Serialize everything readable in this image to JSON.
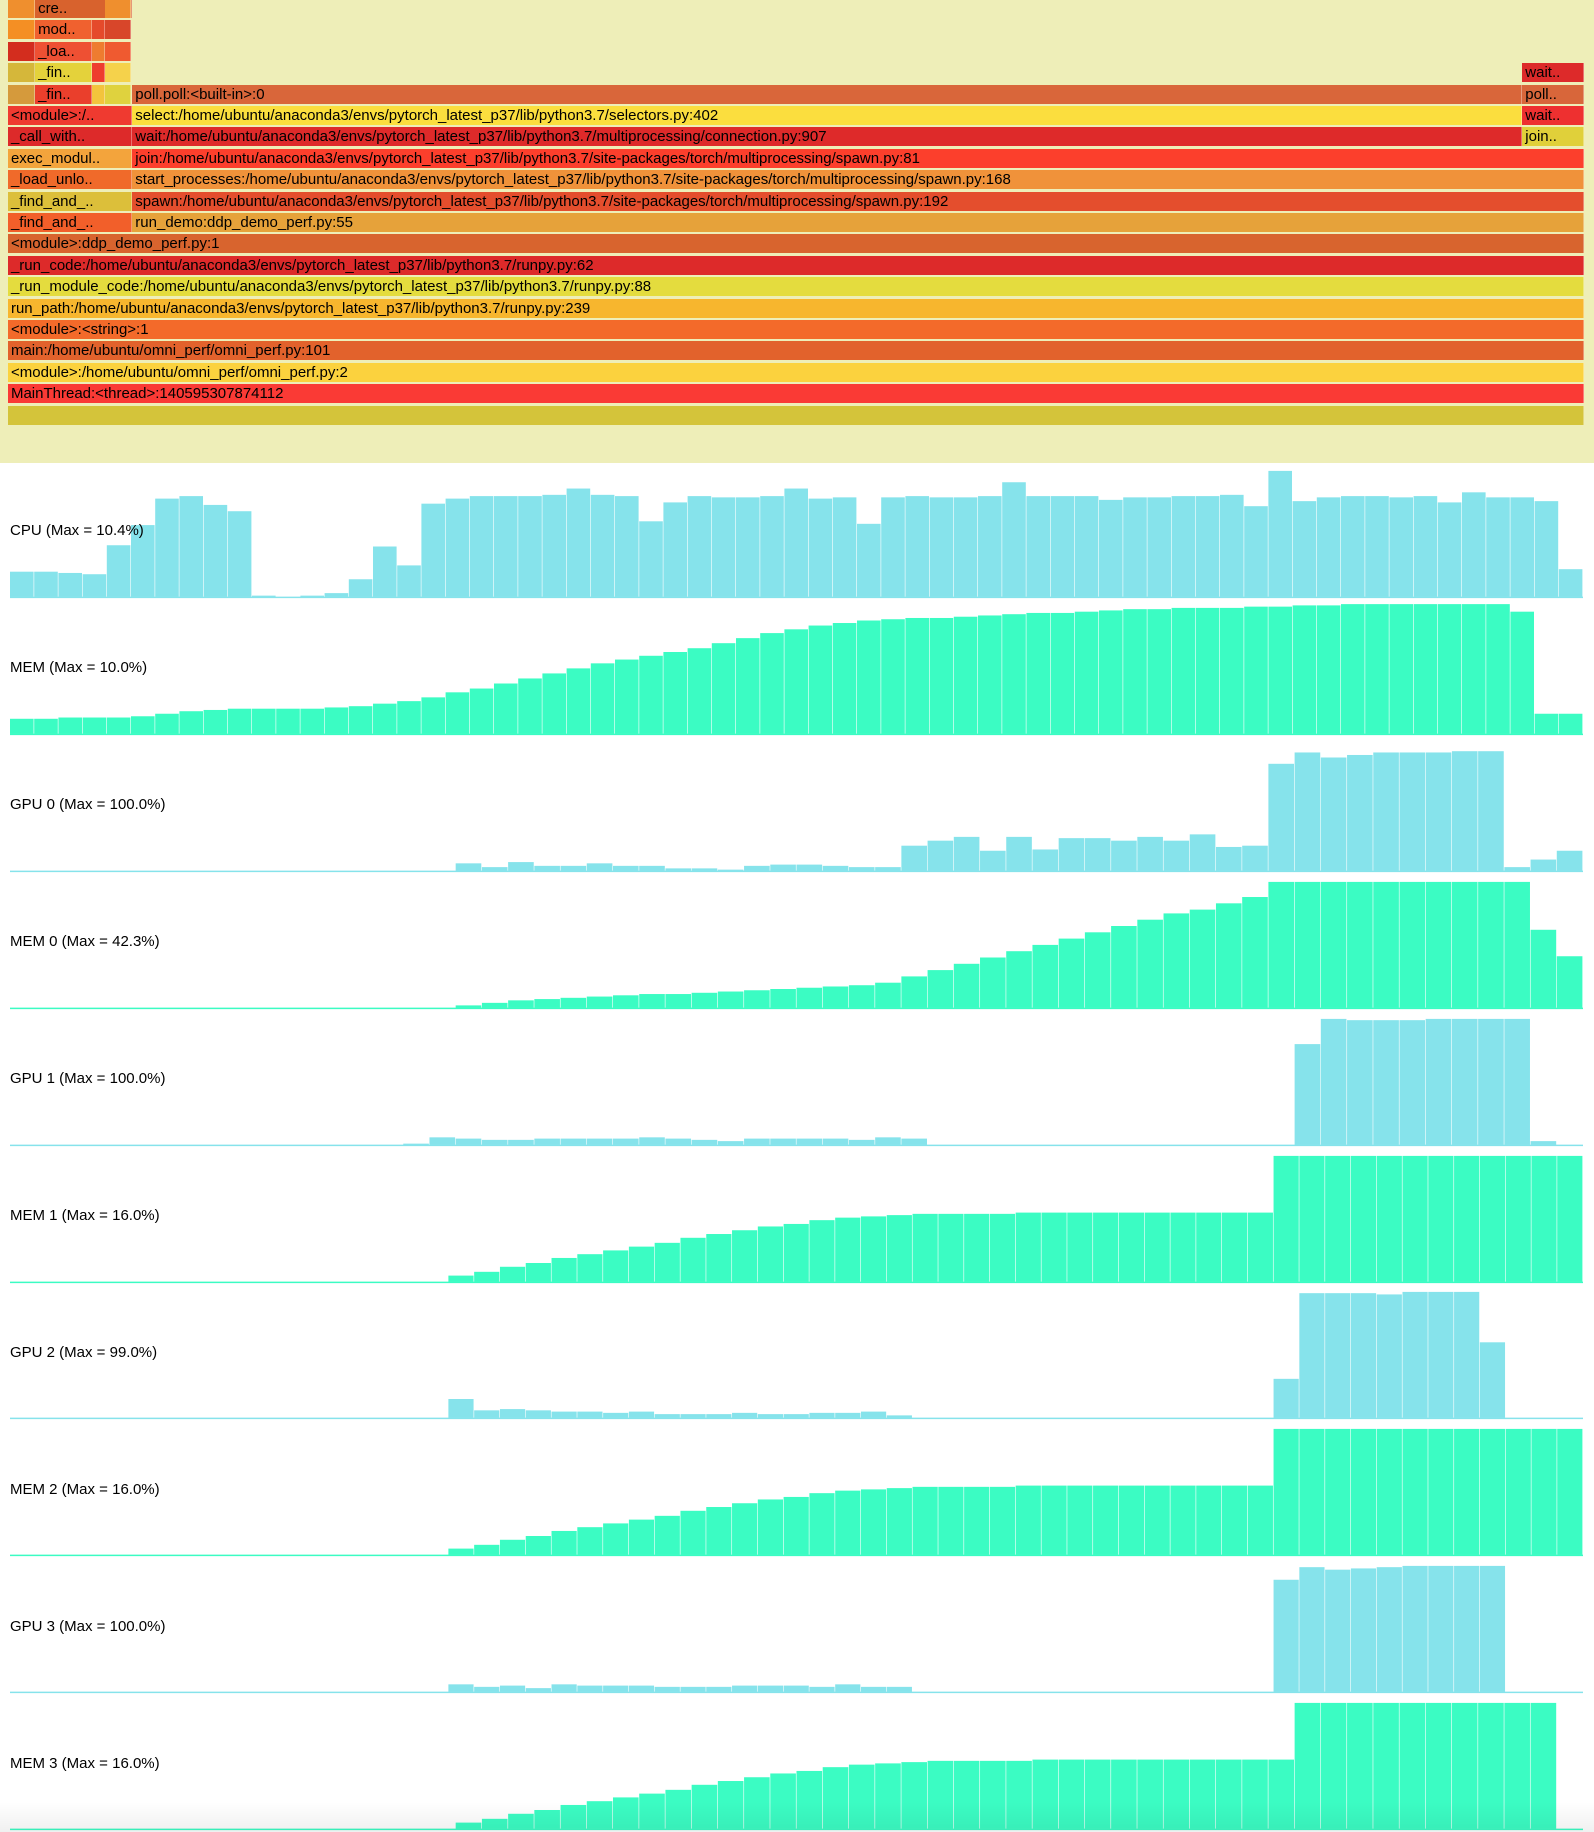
{
  "flamegraph": {
    "frames": [
      {
        "label": "cre..",
        "color": "#d8622d",
        "row": 0,
        "start": 0.022,
        "end": 0.083
      },
      {
        "label": "",
        "color": "#ef8f2e",
        "row": 0,
        "start": 0.005,
        "end": 0.022
      },
      {
        "label": "",
        "color": "#ef8f2e",
        "row": 0,
        "start": 0.066,
        "end": 0.082
      },
      {
        "label": "mod..",
        "color": "#f0612f",
        "row": 1,
        "start": 0.022,
        "end": 0.058
      },
      {
        "label": "",
        "color": "#f48f24",
        "row": 1,
        "start": 0.005,
        "end": 0.022
      },
      {
        "label": "",
        "color": "#e54a2b",
        "row": 1,
        "start": 0.058,
        "end": 0.066
      },
      {
        "label": "",
        "color": "#d8462a",
        "row": 1,
        "start": 0.066,
        "end": 0.082
      },
      {
        "label": "_loa..",
        "color": "#ee5033",
        "row": 2,
        "start": 0.022,
        "end": 0.058
      },
      {
        "label": "",
        "color": "#d32d1e",
        "row": 2,
        "start": 0.005,
        "end": 0.022
      },
      {
        "label": "",
        "color": "#ee7c30",
        "row": 2,
        "start": 0.058,
        "end": 0.066
      },
      {
        "label": "",
        "color": "#ef5a30",
        "row": 2,
        "start": 0.066,
        "end": 0.082
      },
      {
        "label": "_fin..",
        "color": "#e4d23b",
        "row": 3,
        "start": 0.022,
        "end": 0.058
      },
      {
        "label": "",
        "color": "#d5b73a",
        "row": 3,
        "start": 0.005,
        "end": 0.022
      },
      {
        "label": "",
        "color": "#ee3d2e",
        "row": 3,
        "start": 0.058,
        "end": 0.066
      },
      {
        "label": "",
        "color": "#f5d24b",
        "row": 3,
        "start": 0.066,
        "end": 0.082
      },
      {
        "label": "wait..",
        "color": "#dd2a2a",
        "row": 3,
        "start": 0.955,
        "end": 0.994
      },
      {
        "label": "_fin..",
        "color": "#ea3f2c",
        "row": 4,
        "start": 0.022,
        "end": 0.058
      },
      {
        "label": "",
        "color": "#d59a3c",
        "row": 4,
        "start": 0.005,
        "end": 0.022
      },
      {
        "label": "",
        "color": "#f3c43c",
        "row": 4,
        "start": 0.058,
        "end": 0.066
      },
      {
        "label": "",
        "color": "#dfd23e",
        "row": 4,
        "start": 0.066,
        "end": 0.082
      },
      {
        "label": "poll.poll:<built-in>:0",
        "color": "#d9663a",
        "row": 4,
        "start": 0.083,
        "end": 0.955
      },
      {
        "label": "poll..",
        "color": "#d8663a",
        "row": 4,
        "start": 0.955,
        "end": 0.994
      },
      {
        "label": "<module>:/..",
        "color": "#ef3a30",
        "row": 5,
        "start": 0.005,
        "end": 0.083
      },
      {
        "label": "select:/home/ubuntu/anaconda3/envs/pytorch_latest_p37/lib/python3.7/selectors.py:402",
        "color": "#fbde3e",
        "row": 5,
        "start": 0.083,
        "end": 0.955
      },
      {
        "label": "wait..",
        "color": "#ee3030",
        "row": 5,
        "start": 0.955,
        "end": 0.994
      },
      {
        "label": "_call_with..",
        "color": "#dd2a2a",
        "row": 6,
        "start": 0.005,
        "end": 0.083
      },
      {
        "label": "wait:/home/ubuntu/anaconda3/envs/pytorch_latest_p37/lib/python3.7/multiprocessing/connection.py:907",
        "color": "#de2a2a",
        "row": 6,
        "start": 0.083,
        "end": 0.955
      },
      {
        "label": "join..",
        "color": "#e0d03a",
        "row": 6,
        "start": 0.955,
        "end": 0.994
      },
      {
        "label": "exec_modul..",
        "color": "#f3a43c",
        "row": 7,
        "start": 0.005,
        "end": 0.083
      },
      {
        "label": "join:/home/ubuntu/anaconda3/envs/pytorch_latest_p37/lib/python3.7/site-packages/torch/multiprocessing/spawn.py:81",
        "color": "#fc3f2c",
        "row": 7,
        "start": 0.083,
        "end": 0.994
      },
      {
        "label": "_load_unlo..",
        "color": "#f06a2a",
        "row": 8,
        "start": 0.005,
        "end": 0.083
      },
      {
        "label": "start_processes:/home/ubuntu/anaconda3/envs/pytorch_latest_p37/lib/python3.7/site-packages/torch/multiprocessing/spawn.py:168",
        "color": "#f0923a",
        "row": 8,
        "start": 0.083,
        "end": 0.994
      },
      {
        "label": "_find_and_..",
        "color": "#dcbf3a",
        "row": 9,
        "start": 0.005,
        "end": 0.083
      },
      {
        "label": "spawn:/home/ubuntu/anaconda3/envs/pytorch_latest_p37/lib/python3.7/site-packages/torch/multiprocessing/spawn.py:192",
        "color": "#e44e2d",
        "row": 9,
        "start": 0.083,
        "end": 0.994
      },
      {
        "label": "_find_and_..",
        "color": "#f25f2a",
        "row": 10,
        "start": 0.005,
        "end": 0.083
      },
      {
        "label": "run_demo:ddp_demo_perf.py:55",
        "color": "#e6a23a",
        "row": 10,
        "start": 0.083,
        "end": 0.994
      },
      {
        "label": "<module>:ddp_demo_perf.py:1",
        "color": "#d8642e",
        "row": 11,
        "start": 0.005,
        "end": 0.994
      },
      {
        "label": "_run_code:/home/ubuntu/anaconda3/envs/pytorch_latest_p37/lib/python3.7/runpy.py:62",
        "color": "#dd2a2a",
        "row": 12,
        "start": 0.005,
        "end": 0.994
      },
      {
        "label": "_run_module_code:/home/ubuntu/anaconda3/envs/pytorch_latest_p37/lib/python3.7/runpy.py:88",
        "color": "#e4dc3e",
        "row": 13,
        "start": 0.005,
        "end": 0.994
      },
      {
        "label": "run_path:/home/ubuntu/anaconda3/envs/pytorch_latest_p37/lib/python3.7/runpy.py:239",
        "color": "#f7b62e",
        "row": 14,
        "start": 0.005,
        "end": 0.994
      },
      {
        "label": "<module>:<string>:1",
        "color": "#f36a2a",
        "row": 15,
        "start": 0.005,
        "end": 0.994
      },
      {
        "label": "main:/home/ubuntu/omni_perf/omni_perf.py:101",
        "color": "#e2622c",
        "row": 16,
        "start": 0.005,
        "end": 0.994
      },
      {
        "label": "<module>:/home/ubuntu/omni_perf/omni_perf.py:2",
        "color": "#fbd23e",
        "row": 17,
        "start": 0.005,
        "end": 0.994
      },
      {
        "label": "MainThread:<thread>:140595307874112",
        "color": "#fa3a35",
        "row": 18,
        "start": 0.005,
        "end": 0.994
      },
      {
        "label": "",
        "color": "#d4c43a",
        "row": 19,
        "start": 0.005,
        "end": 0.994
      }
    ]
  },
  "chart_data": [
    {
      "type": "bar",
      "title": "CPU (Max = 10.4%)",
      "color": "#86e3eb",
      "max": 100,
      "values": [
        20,
        20,
        19,
        18,
        41,
        57,
        78,
        80,
        73,
        68,
        1,
        0,
        1,
        3,
        14,
        40,
        25,
        74,
        78,
        80,
        80,
        80,
        81,
        86,
        81,
        80,
        60,
        75,
        80,
        79,
        79,
        80,
        86,
        78,
        79,
        58,
        79,
        80,
        79,
        79,
        80,
        91,
        80,
        80,
        80,
        77,
        79,
        79,
        80,
        80,
        81,
        72,
        100,
        76,
        79,
        80,
        80,
        79,
        80,
        75,
        83,
        79,
        79,
        76,
        22
      ]
    },
    {
      "type": "area",
      "title": "MEM (Max = 10.0%)",
      "color": "#3bfcc3",
      "max": 100,
      "values": [
        12,
        12,
        13,
        13,
        13,
        14,
        16,
        18,
        19,
        20,
        20,
        20,
        20,
        21,
        22,
        24,
        26,
        29,
        33,
        36,
        40,
        44,
        48,
        52,
        56,
        59,
        62,
        65,
        68,
        72,
        76,
        80,
        83,
        86,
        88,
        90,
        91,
        92,
        92,
        93,
        94,
        95,
        96,
        96,
        97,
        98,
        99,
        99,
        100,
        100,
        100,
        101,
        101,
        102,
        102,
        103,
        103,
        103,
        103,
        103,
        103,
        103,
        97,
        16,
        16
      ]
    },
    {
      "type": "bar",
      "title": "GPU 0 (Max = 100.0%)",
      "color": "#86e3eb",
      "max": 100,
      "values": [
        0,
        0,
        0,
        0,
        0,
        0,
        0,
        0,
        0,
        0,
        0,
        0,
        0,
        0,
        0,
        0,
        0,
        6,
        3,
        7,
        4,
        4,
        6,
        4,
        4,
        2,
        2,
        1,
        4,
        5,
        5,
        4,
        3,
        3,
        20,
        24,
        27,
        16,
        27,
        17,
        26,
        26,
        24,
        27,
        24,
        29,
        19,
        20,
        85,
        94,
        90,
        92,
        94,
        94,
        94,
        95,
        95,
        3,
        9,
        16
      ]
    },
    {
      "type": "area",
      "title": "MEM 0 (Max = 42.3%)",
      "color": "#3bfcc3",
      "max": 100,
      "values": [
        0,
        0,
        0,
        0,
        0,
        0,
        0,
        0,
        0,
        0,
        0,
        0,
        0,
        0,
        0,
        0,
        0,
        2,
        4,
        6,
        7,
        8,
        9,
        10,
        11,
        11,
        12,
        13,
        14,
        15,
        16,
        17,
        18,
        20,
        25,
        30,
        35,
        40,
        45,
        50,
        55,
        60,
        65,
        70,
        75,
        78,
        83,
        88,
        100,
        100,
        100,
        100,
        100,
        100,
        100,
        100,
        100,
        100,
        62,
        41
      ]
    },
    {
      "type": "bar",
      "title": "GPU 1 (Max = 100.0%)",
      "color": "#86e3eb",
      "max": 100,
      "values": [
        0,
        0,
        0,
        0,
        0,
        0,
        0,
        0,
        0,
        0,
        0,
        0,
        0,
        0,
        0,
        1,
        6,
        5,
        4,
        4,
        5,
        5,
        5,
        5,
        6,
        5,
        4,
        3,
        5,
        5,
        5,
        5,
        4,
        6,
        5,
        0,
        0,
        0,
        0,
        0,
        0,
        0,
        0,
        0,
        0,
        0,
        0,
        0,
        0,
        80,
        100,
        99,
        99,
        99,
        100,
        100,
        100,
        100,
        3,
        0
      ]
    },
    {
      "type": "area",
      "title": "MEM 1 (Max = 16.0%)",
      "color": "#3bfcc3",
      "max": 100,
      "values": [
        0,
        0,
        0,
        0,
        0,
        0,
        0,
        0,
        0,
        0,
        0,
        0,
        0,
        0,
        0,
        0,
        0,
        5,
        8,
        12,
        15,
        19,
        22,
        25,
        28,
        31,
        35,
        38,
        41,
        44,
        46,
        49,
        51,
        52,
        53,
        54,
        54,
        54,
        54,
        55,
        55,
        55,
        55,
        55,
        55,
        55,
        55,
        55,
        55,
        100,
        100,
        100,
        100,
        100,
        100,
        100,
        100,
        100,
        100,
        100,
        100
      ]
    },
    {
      "type": "bar",
      "title": "GPU 2 (Max = 99.0%)",
      "color": "#86e3eb",
      "max": 100,
      "values": [
        0,
        0,
        0,
        0,
        0,
        0,
        0,
        0,
        0,
        0,
        0,
        0,
        0,
        0,
        0,
        0,
        0,
        15,
        6,
        7,
        6,
        5,
        5,
        4,
        5,
        3,
        3,
        3,
        4,
        3,
        3,
        4,
        4,
        5,
        2,
        0,
        0,
        0,
        0,
        0,
        0,
        0,
        0,
        0,
        0,
        0,
        0,
        0,
        0,
        31,
        99,
        99,
        99,
        98,
        100,
        100,
        100,
        60,
        0,
        0,
        0
      ]
    },
    {
      "type": "area",
      "title": "MEM 2 (Max = 16.0%)",
      "color": "#3bfcc3",
      "max": 100,
      "values": [
        0,
        0,
        0,
        0,
        0,
        0,
        0,
        0,
        0,
        0,
        0,
        0,
        0,
        0,
        0,
        0,
        0,
        5,
        8,
        12,
        15,
        19,
        22,
        25,
        28,
        31,
        35,
        38,
        41,
        44,
        46,
        49,
        51,
        52,
        53,
        54,
        54,
        54,
        54,
        55,
        55,
        55,
        55,
        55,
        55,
        55,
        55,
        55,
        55,
        100,
        100,
        100,
        100,
        100,
        100,
        100,
        100,
        100,
        100,
        100,
        100
      ]
    },
    {
      "type": "bar",
      "title": "GPU 3 (Max = 100.0%)",
      "color": "#86e3eb",
      "max": 100,
      "values": [
        0,
        0,
        0,
        0,
        0,
        0,
        0,
        0,
        0,
        0,
        0,
        0,
        0,
        0,
        0,
        0,
        0,
        6,
        4,
        5,
        3,
        6,
        5,
        5,
        5,
        4,
        4,
        4,
        5,
        5,
        5,
        4,
        6,
        4,
        4,
        0,
        0,
        0,
        0,
        0,
        0,
        0,
        0,
        0,
        0,
        0,
        0,
        0,
        0,
        89,
        99,
        97,
        98,
        99,
        100,
        100,
        100,
        100,
        0,
        0,
        0
      ]
    },
    {
      "type": "area",
      "title": "MEM 3 (Max = 16.0%)",
      "color": "#3bfcc3",
      "max": 100,
      "values": [
        0,
        0,
        0,
        0,
        0,
        0,
        0,
        0,
        0,
        0,
        0,
        0,
        0,
        0,
        0,
        0,
        0,
        5,
        8,
        12,
        15,
        19,
        22,
        25,
        28,
        31,
        35,
        38,
        41,
        44,
        46,
        49,
        51,
        52,
        53,
        54,
        54,
        54,
        54,
        55,
        55,
        55,
        55,
        55,
        55,
        55,
        55,
        55,
        55,
        100,
        100,
        100,
        100,
        100,
        100,
        100,
        100,
        100,
        100,
        0
      ]
    }
  ]
}
